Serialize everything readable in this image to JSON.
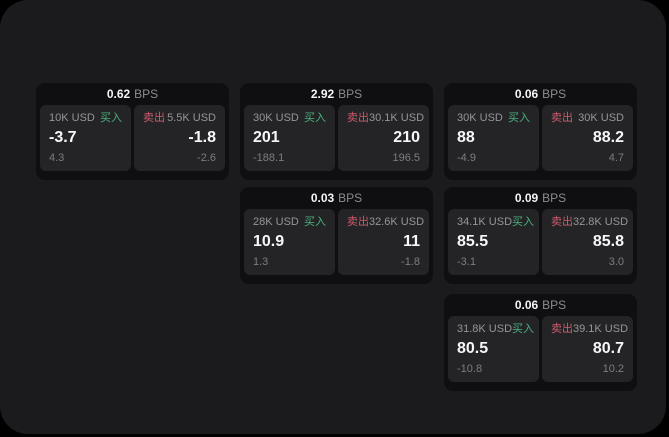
{
  "labels": {
    "bps_unit": "BPS",
    "buy": "买入",
    "sell": "卖出"
  },
  "colors": {
    "buy_green": "#4caf7d",
    "sell_red": "#cd5b6b",
    "panel_bg": "#1b1b1d",
    "card_bg": "#0f0f11",
    "subcard_bg": "#242427"
  },
  "cards": [
    {
      "bps": "0.62",
      "buy": {
        "amount": "10K USD",
        "price": "-3.7",
        "delta": "4.3"
      },
      "sell": {
        "amount": "5.5K USD",
        "price": "-1.8",
        "delta": "-2.6"
      }
    },
    {
      "bps": "2.92",
      "buy": {
        "amount": "30K USD",
        "price": "201",
        "delta": "-188.1"
      },
      "sell": {
        "amount": "30.1K USD",
        "price": "210",
        "delta": "196.5"
      }
    },
    {
      "bps": "0.06",
      "buy": {
        "amount": "30K USD",
        "price": "88",
        "delta": "-4.9"
      },
      "sell": {
        "amount": "30K USD",
        "price": "88.2",
        "delta": "4.7"
      }
    },
    {
      "bps": "0.03",
      "buy": {
        "amount": "28K USD",
        "price": "10.9",
        "delta": "1.3"
      },
      "sell": {
        "amount": "32.6K USD",
        "price": "11",
        "delta": "-1.8"
      }
    },
    {
      "bps": "0.09",
      "buy": {
        "amount": "34.1K USD",
        "price": "85.5",
        "delta": "-3.1"
      },
      "sell": {
        "amount": "32.8K USD",
        "price": "85.8",
        "delta": "3.0"
      }
    },
    {
      "bps": "0.06",
      "buy": {
        "amount": "31.8K USD",
        "price": "80.5",
        "delta": "-10.8"
      },
      "sell": {
        "amount": "39.1K USD",
        "price": "80.7",
        "delta": "10.2"
      }
    }
  ]
}
